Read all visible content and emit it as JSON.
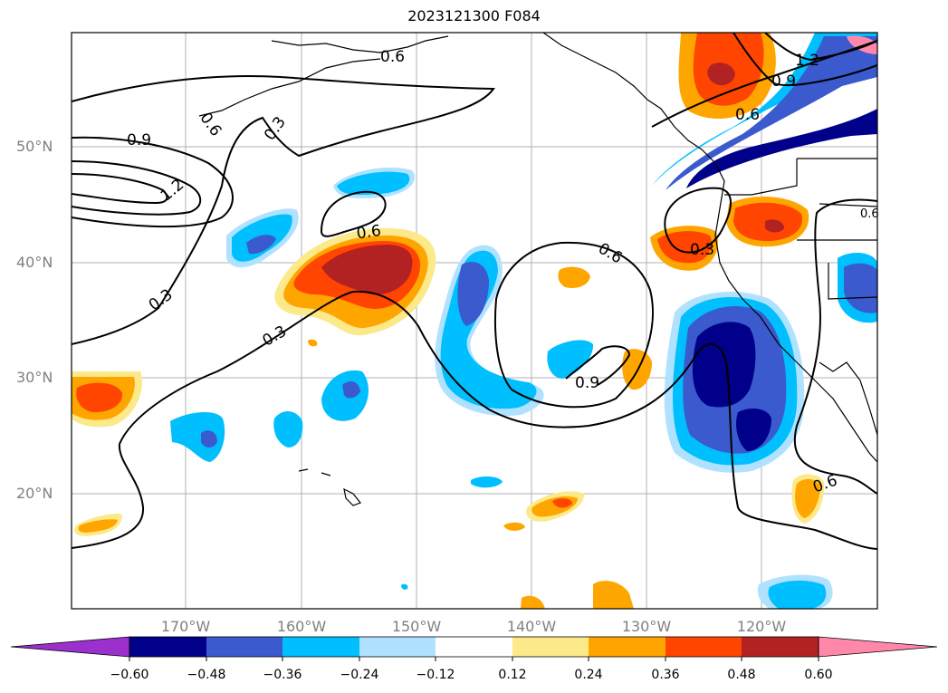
{
  "title": "2023121300 F084",
  "map": {
    "lat_labels": [
      "50°N",
      "40°N",
      "30°N",
      "20°N"
    ],
    "lon_labels": [
      "170°W",
      "160°W",
      "150°W",
      "140°W",
      "130°W",
      "120°W"
    ],
    "contour_labels": [
      "0.6",
      "1.2",
      "0.9",
      "0.6",
      "0.9",
      "0.6",
      "0.3",
      "0.6",
      "1.2",
      "0.3",
      "0.3",
      "0.6",
      "0.6",
      "0.3",
      "0.9",
      "0.6",
      "0.3"
    ]
  },
  "colorbar": {
    "ticks": [
      "−0.60",
      "−0.48",
      "−0.36",
      "−0.24",
      "−0.12",
      "0.12",
      "0.24",
      "0.36",
      "0.48",
      "0.60"
    ],
    "colors": [
      "#9b30cc",
      "#00008b",
      "#3a5acd",
      "#00bfff",
      "#b0e2ff",
      "#ffffff",
      "#fce98a",
      "#ffa500",
      "#ff4500",
      "#b22222",
      "#ff88aa"
    ]
  }
}
